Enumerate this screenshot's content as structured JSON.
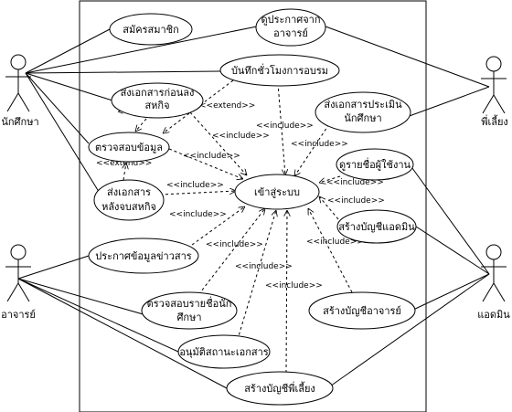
{
  "actors": {
    "student": "นักศึกษา",
    "teacher": "อาจารย์",
    "mentor": "พี่เลี้ยง",
    "admin": "แอดมิน"
  },
  "use_cases": {
    "register": "สมัครสมาชิก",
    "view_announce": [
      "ดูประกาศจาก",
      "อาจารย์"
    ],
    "record_hours": "บันทึกชั่วโมงการอบรม",
    "submit_before": [
      "ส่งเอกสารก่อนลง",
      "สหกิจ"
    ],
    "check_info": "ตรวจสอบข้อมูล",
    "submit_after": [
      "ส่งเอกสาร",
      "หลังจบสหกิจ"
    ],
    "eval_docs": [
      "ส่งเอกสารประเมิน",
      "นักศึกษา"
    ],
    "login": "เข้าสู่ระบบ",
    "view_users": "ดูรายชื่อผู้ใช้งาน",
    "create_admin": "สร้างบัญชีแอดมิน",
    "announce": "ประกาศข้อมูลข่าวสาร",
    "check_students": [
      "ตรวจสอบรายชื่อนัก",
      "ศึกษา"
    ],
    "create_teacher": "สร้างบัญชีอาจารย์",
    "approve_place": "อนุมัติสถานะเอกสาร",
    "create_mentor": "สร้างบัญชีพี่เลี้ยง"
  },
  "relations": {
    "include": "<<include>>",
    "extend": "<<extend>>"
  }
}
